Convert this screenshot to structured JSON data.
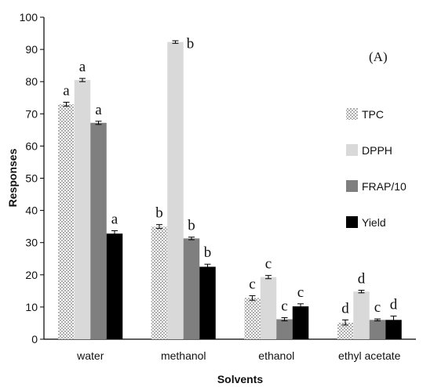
{
  "chart_data": {
    "type": "bar",
    "panel_label": "(A)",
    "xlabel": "Solvents",
    "ylabel": "Responses",
    "ylim": [
      0,
      100
    ],
    "yticks": [
      0,
      10,
      20,
      30,
      40,
      50,
      60,
      70,
      80,
      90,
      100
    ],
    "categories": [
      "water",
      "methanol",
      "ethanol",
      "ethyl acetate"
    ],
    "series": [
      {
        "name": "TPC",
        "values": [
          73,
          35,
          12.8,
          5.2
        ],
        "errors": [
          0.6,
          0.6,
          0.7,
          0.8
        ],
        "letters": [
          "a",
          "b",
          "c",
          "d"
        ],
        "fill": "dots"
      },
      {
        "name": "DPPH",
        "values": [
          80.5,
          92.3,
          19.3,
          14.8
        ],
        "errors": [
          0.5,
          0.4,
          0.5,
          0.4
        ],
        "letters": [
          "a",
          "b",
          "c",
          "d"
        ],
        "fill": "#d9d9d9"
      },
      {
        "name": "FRAP/10",
        "values": [
          67.2,
          31.3,
          6.2,
          6
        ],
        "errors": [
          0.5,
          0.4,
          0.5,
          0.3
        ],
        "letters": [
          "a",
          "b",
          "c",
          "c"
        ],
        "fill": "#7f7f7f"
      },
      {
        "name": "Yield",
        "values": [
          32.8,
          22.5,
          10.2,
          6
        ],
        "errors": [
          0.9,
          0.8,
          0.8,
          1.2
        ],
        "letters": [
          "a",
          "b",
          "c",
          "d"
        ],
        "fill": "#000000"
      }
    ],
    "grid": false,
    "legend_position": "right"
  }
}
